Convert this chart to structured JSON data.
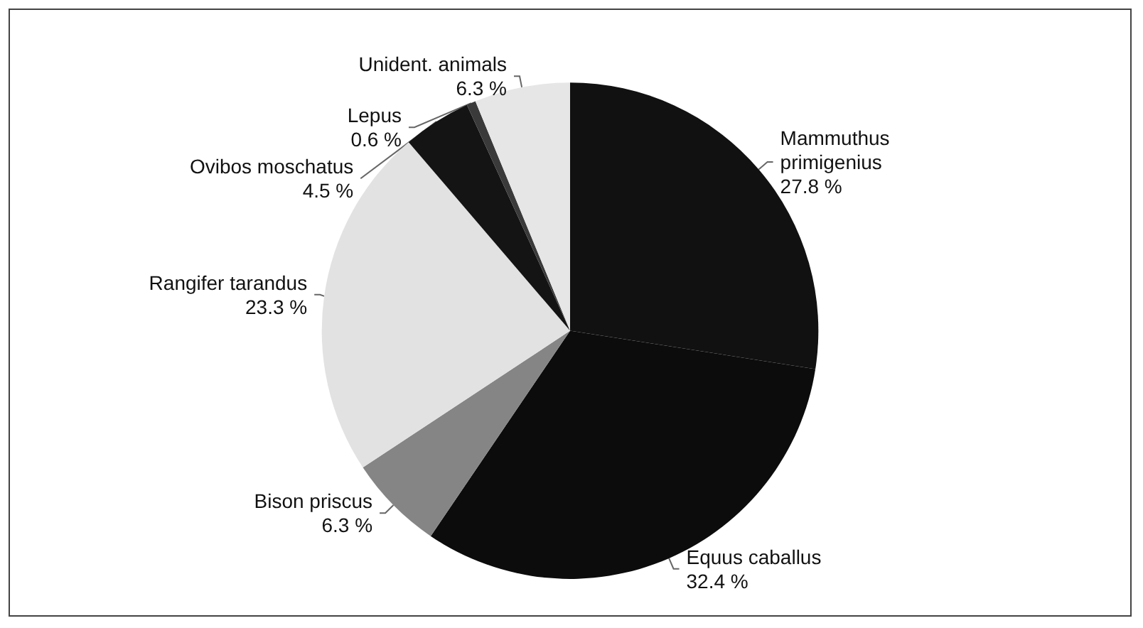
{
  "chart_data": {
    "type": "pie",
    "categories": [
      "Mammuthus primigenius",
      "Equus caballus",
      "Bison priscus",
      "Rangifer tarandus",
      "Ovibos moschatus",
      "Lepus",
      "Unident. animals"
    ],
    "values": [
      27.8,
      32.4,
      6.3,
      23.3,
      4.5,
      0.6,
      6.3
    ],
    "value_labels": [
      "27.8 %",
      "32.4 %",
      "6.3 %",
      "23.3 %",
      "4.5 %",
      "0.6 %",
      "6.3 %"
    ],
    "colors": [
      "#111111",
      "#0c0c0c",
      "#858585",
      "#e2e2e2",
      "#141414",
      "#3a3a3a",
      "#e6e6e6"
    ],
    "legend": false
  }
}
